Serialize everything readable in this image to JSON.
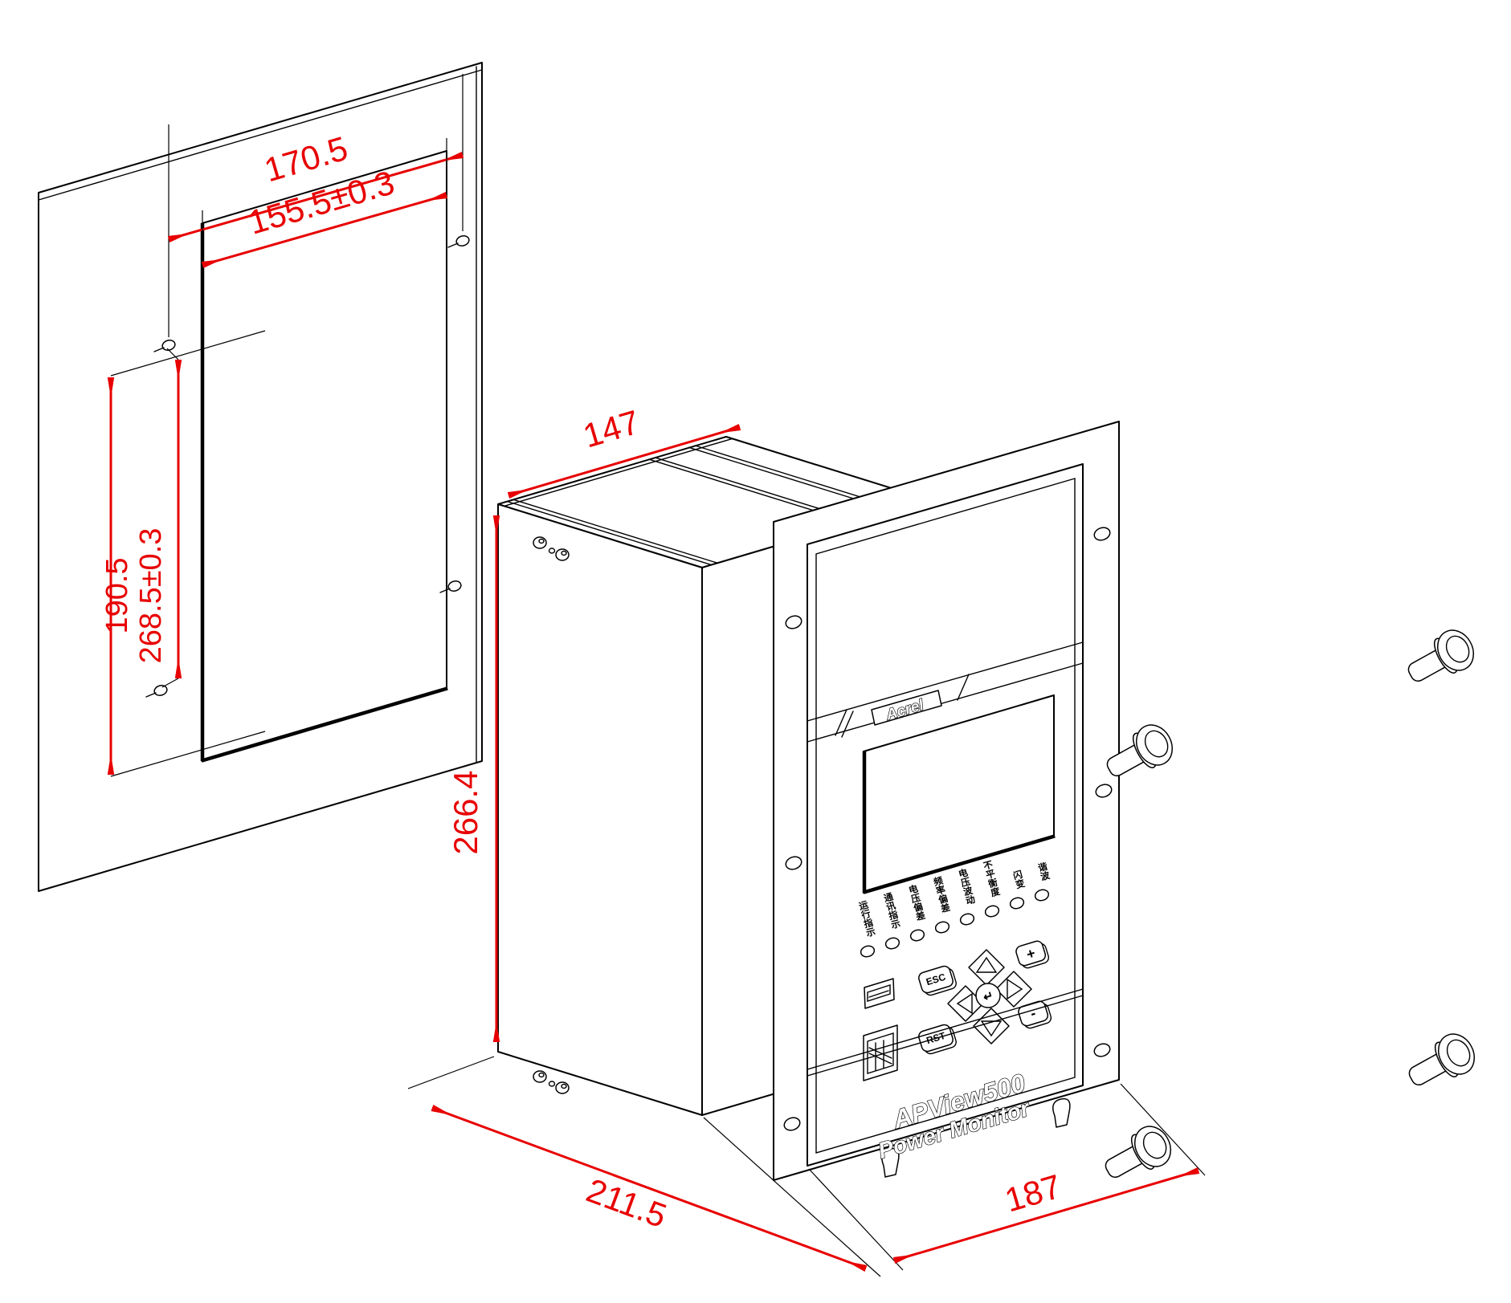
{
  "drawing": {
    "dims": {
      "hole_w": "170.5",
      "cut_w": "155.5±0.3",
      "hole_h": "190.5",
      "cut_h": "268.5±0.3",
      "dev_top": "147",
      "dev_h": "266.4",
      "dev_d": "211.5",
      "dev_w": "187"
    },
    "colors": {
      "dimension_red": "#e80000",
      "line_black": "#000000",
      "background": "#ffffff"
    }
  },
  "device": {
    "brand": "Acrel",
    "model": "APView500",
    "subtitle": "Power Monitor",
    "buttons": {
      "esc": "ESC",
      "rst": "RST",
      "plus": "+",
      "minus": "-",
      "enter": "↵"
    },
    "led_labels": [
      "运行指示",
      "通讯指示",
      "电压偏差",
      "频率偏差",
      "电压波动",
      "不平衡度",
      "闪变",
      "谐波"
    ]
  }
}
